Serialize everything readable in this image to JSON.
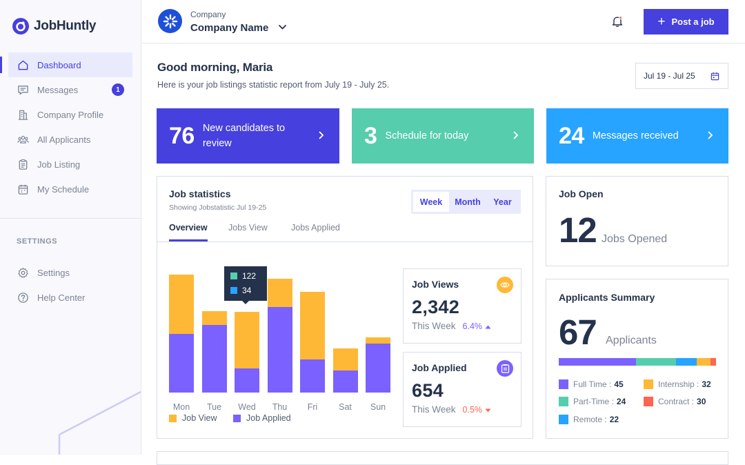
{
  "brand": {
    "name": "JobHuntly"
  },
  "sidebar": {
    "items": [
      {
        "label": "Dashboard",
        "icon": "home-icon",
        "active": true
      },
      {
        "label": "Messages",
        "icon": "message-icon",
        "badge": "1"
      },
      {
        "label": "Company Profile",
        "icon": "building-icon"
      },
      {
        "label": "All Applicants",
        "icon": "users-icon"
      },
      {
        "label": "Job Listing",
        "icon": "clipboard-icon"
      },
      {
        "label": "My Schedule",
        "icon": "calendar-icon"
      }
    ],
    "settings_heading": "SETTINGS",
    "settings_items": [
      {
        "label": "Settings",
        "icon": "gear-icon"
      },
      {
        "label": "Help Center",
        "icon": "help-icon"
      }
    ]
  },
  "header": {
    "company_label": "Company",
    "company_name": "Company Name",
    "post_job_label": "Post a job"
  },
  "greeting": {
    "title": "Good morning, Maria",
    "subtitle": "Here is your job listings statistic report from July 19 - July 25.",
    "date_range": "Jul 19 - Jul 25"
  },
  "stat_cards": [
    {
      "value": "76",
      "label_line1": "New candidates to",
      "label_line2": "review",
      "color": "#4640de"
    },
    {
      "value": "3",
      "label_line1": "Schedule for today",
      "label_line2": "",
      "color": "#56cdad"
    },
    {
      "value": "24",
      "label_line1": "Messages received",
      "label_line2": "",
      "color": "#26a4ff"
    }
  ],
  "job_statistics": {
    "title": "Job statistics",
    "subtitle": "Showing Jobstatistic Jul 19-25",
    "periods": [
      "Week",
      "Month",
      "Year"
    ],
    "selected_period": "Week",
    "tabs": [
      "Overview",
      "Jobs View",
      "Jobs Applied"
    ],
    "selected_tab": "Overview",
    "tooltip": {
      "job_view": "122",
      "job_applied": "34"
    },
    "legend": {
      "job_view": "Job View",
      "job_applied": "Job Applied"
    }
  },
  "chart_data": {
    "type": "bar",
    "stacked": true,
    "categories": [
      "Mon",
      "Tue",
      "Wed",
      "Thu",
      "Fri",
      "Sat",
      "Sun"
    ],
    "series": [
      {
        "name": "Job Applied",
        "color": "#7b61ff",
        "values": [
          58,
          67,
          24,
          85,
          33,
          22,
          49
        ]
      },
      {
        "name": "Job View",
        "color": "#ffb836",
        "values": [
          59,
          14,
          56,
          28,
          67,
          22,
          6
        ]
      }
    ],
    "ylim": [
      0,
      120
    ]
  },
  "job_views": {
    "title": "Job Views",
    "value": "2,342",
    "period": "This Week",
    "change": "6.4%",
    "trend": "up",
    "icon": "eye-icon"
  },
  "job_applied": {
    "title": "Job Applied",
    "value": "654",
    "period": "This Week",
    "change": "0.5%",
    "trend": "down",
    "icon": "clipboard-icon"
  },
  "job_open": {
    "title": "Job Open",
    "value": "12",
    "unit": "Jobs Opened"
  },
  "applicants_summary": {
    "title": "Applicants Summary",
    "value": "67",
    "unit": "Applicants",
    "categories": [
      {
        "label": "Full Time",
        "value": 45,
        "color": "#7b61ff"
      },
      {
        "label": "Internship",
        "value": 32,
        "color": "#ffb836"
      },
      {
        "label": "Part-Time",
        "value": 24,
        "color": "#56cdad"
      },
      {
        "label": "Contract",
        "value": 30,
        "color": "#ff6550"
      },
      {
        "label": "Remote",
        "value": 22,
        "color": "#26a4ff"
      }
    ]
  },
  "colors": {
    "primary": "#4640de",
    "job_view": "#ffb836",
    "job_applied": "#7b61ff",
    "up": "#56cdad",
    "down": "#ff6550"
  }
}
